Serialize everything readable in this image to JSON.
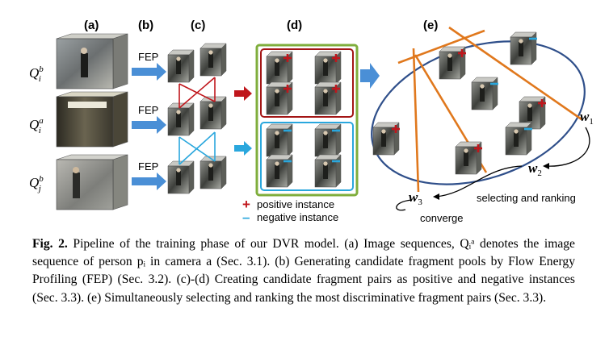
{
  "figure": {
    "panel_labels": [
      "(a)",
      "(b)",
      "(c)",
      "(d)",
      "(e)"
    ],
    "fep_label": "FEP",
    "seq_labels": [
      {
        "base": "Q",
        "sup": "b",
        "sub": "i"
      },
      {
        "base": "Q",
        "sup": "a",
        "sub": "i"
      },
      {
        "base": "Q",
        "sup": "b",
        "sub": "j"
      }
    ],
    "legend": {
      "positive_symbol": "+",
      "positive_label": "positive instance",
      "negative_symbol": "–",
      "negative_label": "negative instance"
    },
    "weights": [
      {
        "base": "w",
        "sub": "1"
      },
      {
        "base": "w",
        "sub": "2"
      },
      {
        "base": "w",
        "sub": "3"
      }
    ],
    "selecting_label": "selecting and ranking",
    "converge_label": "converge",
    "colors": {
      "arrow_blue": "#4a8fd6",
      "arrow_red": "#c0161c",
      "positive_box": "#a31515",
      "negative_box": "#2aa7dd",
      "green_frame": "#7fae3c",
      "ellipse": "#2f4f8a",
      "orange_line": "#e0781d"
    }
  },
  "caption": {
    "fig_num": "Fig. 2.",
    "text": " Pipeline of the training phase of our DVR model. (a) Image sequences, Qᵢᵃ denotes the image sequence of person pᵢ in camera a (Sec. 3.1). (b) Generating candidate fragment pools by Flow Energy Profiling (FEP) (Sec. 3.2). (c)-(d) Creating candidate fragment pairs as positive and negative instances (Sec. 3.3). (e) Simultaneously selecting and ranking the most discriminative fragment pairs (Sec. 3.3)."
  }
}
